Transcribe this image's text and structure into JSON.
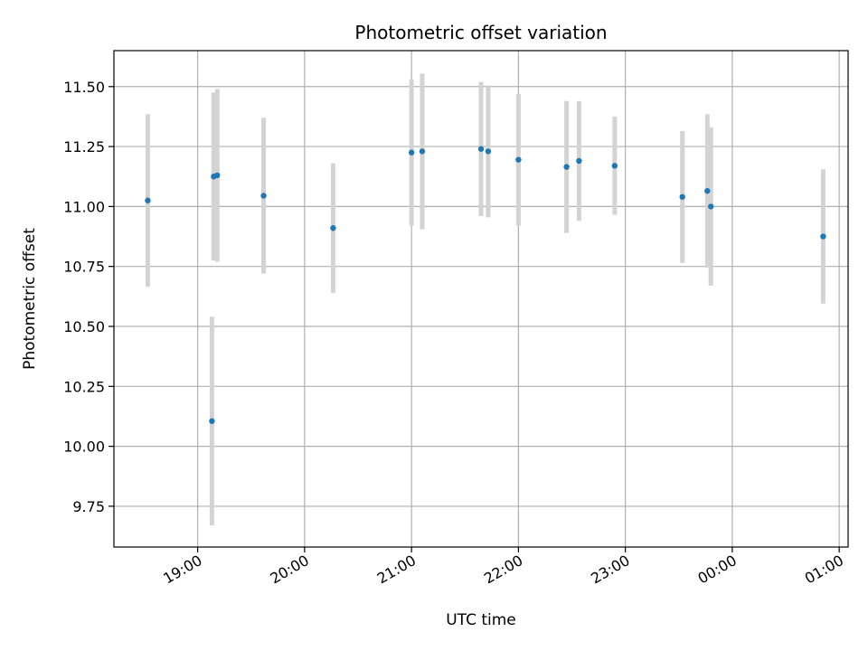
{
  "chart_data": {
    "type": "scatter",
    "title": "Photometric offset variation",
    "xlabel": "UTC time",
    "ylabel": "Photometric offset",
    "x_ticks": [
      "19:00",
      "20:00",
      "21:00",
      "22:00",
      "23:00",
      "00:00",
      "01:00"
    ],
    "y_ticks": [
      "9.75",
      "10.00",
      "10.25",
      "10.50",
      "10.75",
      "11.00",
      "11.25",
      "11.50"
    ],
    "xlim": [
      "18:13",
      "01:05"
    ],
    "ylim": [
      9.58,
      11.65
    ],
    "grid": true,
    "colors": {
      "points": "#1f77b4",
      "error_bars": "#d3d3d3",
      "grid": "#b0b0b0"
    },
    "series": [
      {
        "points": [
          {
            "x": "18:32",
            "y": 11.025,
            "err": 0.36
          },
          {
            "x": "19:08",
            "y": 10.105,
            "err": 0.435
          },
          {
            "x": "19:09",
            "y": 11.125,
            "err": 0.35
          },
          {
            "x": "19:11",
            "y": 11.13,
            "err": 0.36
          },
          {
            "x": "19:37",
            "y": 11.045,
            "err": 0.325
          },
          {
            "x": "20:16",
            "y": 10.91,
            "err": 0.27
          },
          {
            "x": "21:00",
            "y": 11.225,
            "err": 0.305
          },
          {
            "x": "21:06",
            "y": 11.23,
            "err": 0.325
          },
          {
            "x": "21:39",
            "y": 11.24,
            "err": 0.28
          },
          {
            "x": "21:43",
            "y": 11.23,
            "err": 0.275
          },
          {
            "x": "22:00",
            "y": 11.195,
            "err": 0.275
          },
          {
            "x": "22:27",
            "y": 11.165,
            "err": 0.275
          },
          {
            "x": "22:34",
            "y": 11.19,
            "err": 0.25
          },
          {
            "x": "22:54",
            "y": 11.17,
            "err": 0.205
          },
          {
            "x": "23:32",
            "y": 11.04,
            "err": 0.275
          },
          {
            "x": "23:46",
            "y": 11.065,
            "err": 0.32
          },
          {
            "x": "23:48",
            "y": 11.0,
            "err": 0.33
          },
          {
            "x": "00:51",
            "y": 10.875,
            "err": 0.28
          }
        ]
      }
    ]
  }
}
